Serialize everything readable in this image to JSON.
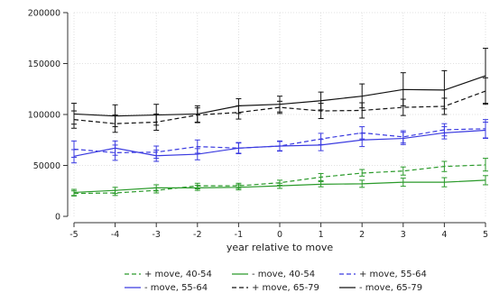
{
  "chart_data": {
    "type": "line",
    "title": "",
    "xlabel": "year relative to move",
    "ylabel": "",
    "x": [
      -5,
      -4,
      -3,
      -2,
      -1,
      0,
      1,
      2,
      3,
      4,
      5
    ],
    "xlim": [
      -5,
      5
    ],
    "ylim": [
      0,
      200000
    ],
    "xticks": [
      "-5",
      "-4",
      "-3",
      "-2",
      "-1",
      "0",
      "1",
      "2",
      "3",
      "4",
      "5"
    ],
    "yticks": [
      {
        "value": 0,
        "label": "0"
      },
      {
        "value": 50000,
        "label": "50000"
      },
      {
        "value": 100000,
        "label": "100000"
      },
      {
        "value": 150000,
        "label": "150000"
      },
      {
        "value": 200000,
        "label": "200000"
      }
    ],
    "grid": true,
    "legend_position": "bottom",
    "series": [
      {
        "name": "+ move, 40-54",
        "color": "#2a9a2a",
        "dash": "dashed",
        "values": [
          22500,
          23000,
          25500,
          30000,
          30000,
          33000,
          38500,
          42500,
          44500,
          49000,
          50500
        ],
        "ci_low": [
          20000,
          20500,
          23000,
          27000,
          27500,
          30500,
          35000,
          39500,
          40500,
          44000,
          44500
        ],
        "ci_high": [
          25000,
          25500,
          28000,
          32500,
          32500,
          35500,
          42000,
          46000,
          48500,
          54000,
          57000
        ]
      },
      {
        "name": "- move, 40-54",
        "color": "#2a9a2a",
        "dash": "solid",
        "values": [
          23500,
          25500,
          28000,
          28000,
          28500,
          30000,
          31500,
          32000,
          33500,
          33500,
          35500
        ],
        "ci_low": [
          20500,
          22500,
          25000,
          25500,
          26000,
          27500,
          29000,
          28500,
          29500,
          29000,
          31000
        ],
        "ci_high": [
          26500,
          28500,
          31000,
          30500,
          31000,
          32500,
          34000,
          35500,
          37500,
          38000,
          40000
        ]
      },
      {
        "name": "+ move, 55-64",
        "color": "#3a3ae0",
        "dash": "dashed",
        "values": [
          66000,
          62500,
          63000,
          68500,
          67000,
          69000,
          76000,
          82000,
          78000,
          85000,
          86000
        ],
        "ci_low": [
          58000,
          55000,
          57000,
          62000,
          61500,
          64500,
          70500,
          76000,
          72000,
          79000,
          77000
        ],
        "ci_high": [
          74000,
          70000,
          69000,
          75000,
          72500,
          73500,
          81500,
          88000,
          84000,
          91000,
          95000
        ]
      },
      {
        "name": "- move, 55-64",
        "color": "#3a3ae0",
        "dash": "solid",
        "values": [
          59000,
          67000,
          59500,
          61000,
          67000,
          69000,
          70000,
          75000,
          76500,
          82000,
          84500
        ],
        "ci_low": [
          52500,
          60000,
          54000,
          55500,
          62000,
          64000,
          64500,
          68500,
          70500,
          76000,
          76500
        ],
        "ci_high": [
          65500,
          74000,
          65000,
          66500,
          72000,
          74000,
          75500,
          81500,
          82500,
          88000,
          92500
        ]
      },
      {
        "name": "+ move, 65-79",
        "color": "#111111",
        "dash": "dashed",
        "values": [
          95000,
          91000,
          92500,
          99500,
          102000,
          107000,
          103500,
          104000,
          107000,
          108000,
          123000
        ],
        "ci_low": [
          86500,
          82500,
          84500,
          92500,
          95500,
          101000,
          96000,
          96500,
          99000,
          100000,
          110000
        ],
        "ci_high": [
          103500,
          99500,
          100500,
          106500,
          108500,
          113000,
          111000,
          111500,
          115000,
          116000,
          136000
        ]
      },
      {
        "name": "- move, 65-79",
        "color": "#111111",
        "dash": "solid",
        "values": [
          100500,
          98500,
          99500,
          100500,
          108500,
          110000,
          113500,
          118000,
          124500,
          124000,
          138000
        ],
        "ci_low": [
          90500,
          88000,
          89500,
          92000,
          101000,
          102500,
          104500,
          106500,
          108500,
          105500,
          111000
        ],
        "ci_high": [
          111000,
          109500,
          110000,
          108500,
          115500,
          118000,
          122000,
          130000,
          141000,
          143000,
          165000
        ]
      }
    ]
  }
}
